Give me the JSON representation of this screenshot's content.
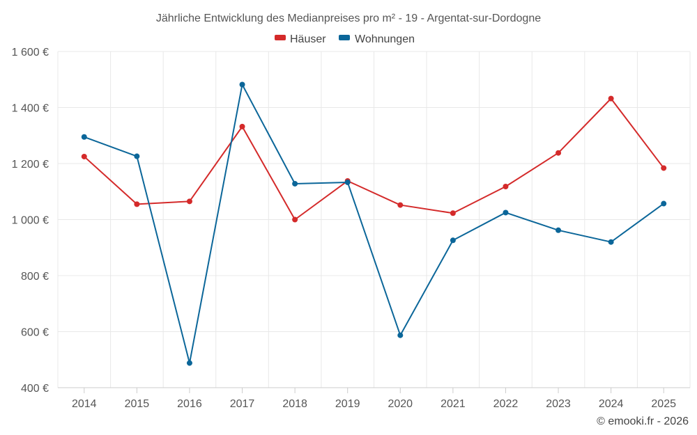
{
  "chart_data": {
    "type": "line",
    "title": "Jährliche Entwicklung des Medianpreises pro m² - 19 - Argentat-sur-Dordogne",
    "categories": [
      "2014",
      "2015",
      "2016",
      "2017",
      "2018",
      "2019",
      "2020",
      "2021",
      "2022",
      "2023",
      "2024",
      "2025"
    ],
    "series": [
      {
        "name": "Häuser",
        "color": "#d42a2a",
        "values": [
          1225,
          1055,
          1065,
          1332,
          1000,
          1138,
          1052,
          1023,
          1118,
          1238,
          1432,
          1184
        ]
      },
      {
        "name": "Wohnungen",
        "color": "#0b6699",
        "values": [
          1295,
          1226,
          488,
          1482,
          1128,
          1133,
          587,
          926,
          1025,
          962,
          920,
          1057
        ]
      }
    ],
    "ylim": [
      400,
      1600
    ],
    "yticks": [
      "400 €",
      "600 €",
      "800 €",
      "1 000 €",
      "1 200 €",
      "1 400 €",
      "1 600 €"
    ],
    "ytick_values": [
      400,
      600,
      800,
      1000,
      1200,
      1400,
      1600
    ],
    "xlabel": "",
    "ylabel": "",
    "grid": true,
    "legend": "top-center"
  },
  "credit": "© emooki.fr - 2026"
}
